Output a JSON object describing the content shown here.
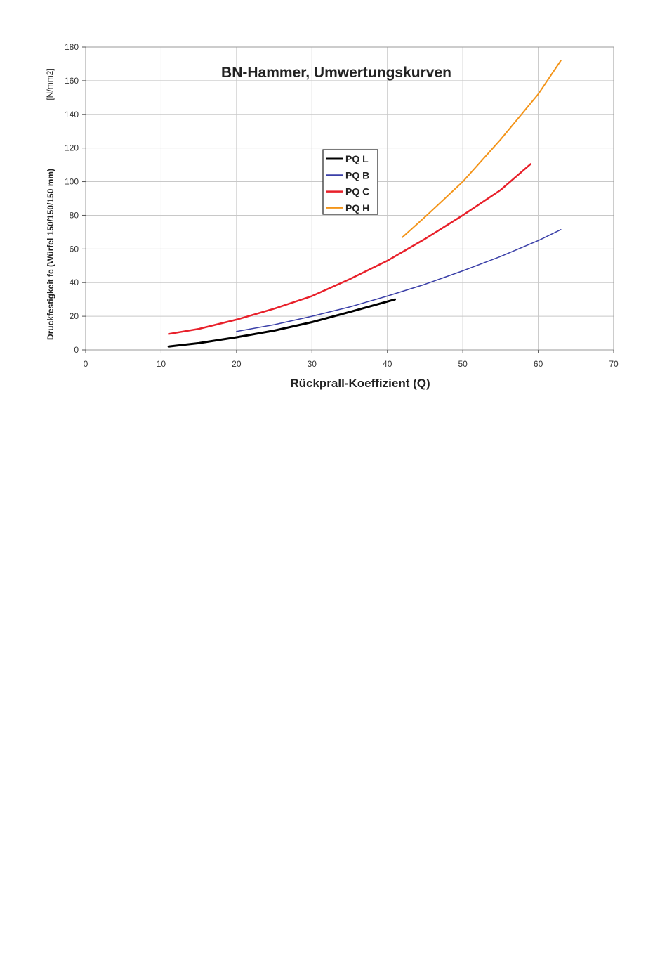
{
  "chart_data": {
    "type": "line",
    "title": "BN-Hammer, Umwertungskurven",
    "xlabel": "Rückprall-Koeffizient (Q)",
    "ylabel": "Druckfestigkeit fc (Würfel 150/150/150 mm)",
    "yunit": "[N/mm2]",
    "xlim": [
      0,
      70
    ],
    "ylim": [
      0,
      180
    ],
    "xticks": [
      0,
      10,
      20,
      30,
      40,
      50,
      60,
      70
    ],
    "yticks": [
      0,
      20,
      40,
      60,
      80,
      100,
      120,
      140,
      160,
      180
    ],
    "grid": true,
    "legend_position": "center",
    "series": [
      {
        "name": "PQ L",
        "color": "#000000",
        "width": 3,
        "x": [
          11,
          15,
          20,
          25,
          30,
          35,
          41
        ],
        "y": [
          2,
          4,
          7.5,
          11.5,
          16.5,
          22.5,
          30
        ]
      },
      {
        "name": "PQ B",
        "color": "#3a3fa8",
        "width": 1.5,
        "x": [
          20,
          25,
          30,
          35,
          40,
          45,
          50,
          55,
          60,
          63
        ],
        "y": [
          11,
          15,
          20,
          25.5,
          32,
          39,
          47,
          55.5,
          65,
          71.5
        ]
      },
      {
        "name": "PQ C",
        "color": "#e8202a",
        "width": 2.5,
        "x": [
          11,
          15,
          20,
          25,
          30,
          35,
          40,
          45,
          50,
          55,
          59
        ],
        "y": [
          9.5,
          12.5,
          18,
          24.5,
          32,
          42,
          53,
          66,
          80,
          95,
          110.5
        ]
      },
      {
        "name": "PQ H",
        "color": "#f39419",
        "width": 2,
        "x": [
          42,
          45,
          50,
          55,
          60,
          63
        ],
        "y": [
          67,
          79,
          100,
          125,
          152,
          172
        ]
      }
    ]
  }
}
